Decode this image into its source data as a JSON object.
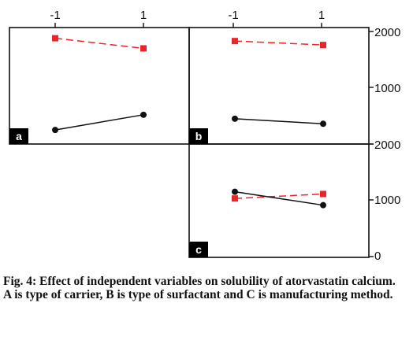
{
  "chart_data": [
    {
      "type": "line",
      "panel_label": "a",
      "x": [
        -1,
        1
      ],
      "series": [
        {
          "values": [
            1880,
            1700
          ],
          "color": "#e8262a",
          "style": "dashed",
          "marker": "square"
        },
        {
          "values": [
            250,
            520
          ],
          "color": "#111111",
          "style": "solid",
          "marker": "circle"
        }
      ],
      "ylim": [
        0,
        2000
      ]
    },
    {
      "type": "line",
      "panel_label": "b",
      "x": [
        -1,
        1
      ],
      "series": [
        {
          "values": [
            1830,
            1760
          ],
          "color": "#e8262a",
          "style": "dashed",
          "marker": "square"
        },
        {
          "values": [
            450,
            360
          ],
          "color": "#111111",
          "style": "solid",
          "marker": "circle"
        }
      ],
      "ylim": [
        0,
        2000
      ]
    },
    {
      "type": "line",
      "panel_label": "c",
      "x": [
        -1,
        1
      ],
      "series": [
        {
          "values": [
            1040,
            1120
          ],
          "color": "#e8262a",
          "style": "dashed",
          "marker": "square"
        },
        {
          "values": [
            1160,
            920
          ],
          "color": "#111111",
          "style": "solid",
          "marker": "circle"
        }
      ],
      "ylim": [
        0,
        2000
      ]
    }
  ],
  "axes": {
    "x_tick_labels": [
      "-1",
      "1",
      "-1",
      "1"
    ],
    "y_tick_labels_top": [
      "2000",
      "1000",
      "0"
    ],
    "y_tick_labels_bottom": [
      "2000",
      "1000",
      "0"
    ]
  },
  "caption": {
    "line1": "Fig. 4: Effect of independent variables on solubility of atorvastatin calcium.",
    "line2": "A is type of carrier, B is type of surfactant and C is manufacturing method."
  }
}
